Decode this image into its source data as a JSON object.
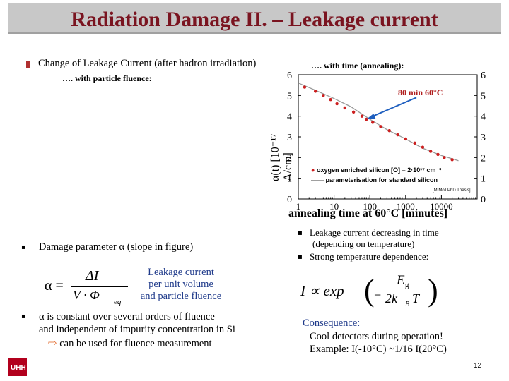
{
  "slide": {
    "title": "Radiation Damage II. – Leakage current",
    "page_number": "12"
  },
  "left_top": {
    "bullet_text": "Change of Leakage Current (after hadron irradiation)",
    "sub_text": "…. with particle fluence:"
  },
  "right_top": {
    "heading": "…. with time (annealing):"
  },
  "chart": {
    "annotation": "80 min 60°C",
    "ylabel": "α(t) [10⁻¹⁷ A/cm]",
    "xlabel": "annealing time at 60°C [minutes]",
    "legend_oxygen": "oxygen enriched silicon [O] = 2·10¹⁷ cm⁻³",
    "legend_param": "parameterisation for standard silicon",
    "credit": "[M.Moll PhD Thesis]",
    "y_ticks": [
      "0",
      "1",
      "2",
      "3",
      "4",
      "5",
      "6"
    ],
    "x_ticks": [
      "1",
      "10",
      "100",
      "1000",
      "10000"
    ]
  },
  "chart_data": {
    "type": "scatter",
    "title": "",
    "xlabel": "annealing time at 60°C [minutes]",
    "ylabel": "α(t) [10⁻¹⁷ A/cm]",
    "x_scale": "log",
    "xlim": [
      1,
      100000
    ],
    "ylim": [
      0,
      6
    ],
    "series": [
      {
        "name": "oxygen enriched silicon [O] = 2·10¹⁷ cm⁻³",
        "x": [
          1.5,
          3,
          5,
          8,
          12,
          20,
          35,
          60,
          80,
          120,
          200,
          350,
          600,
          1000,
          1800,
          3000,
          5000,
          8000,
          12000,
          20000
        ],
        "y": [
          5.4,
          5.2,
          5.0,
          4.8,
          4.6,
          4.4,
          4.2,
          4.0,
          3.85,
          3.7,
          3.5,
          3.3,
          3.1,
          2.9,
          2.7,
          2.5,
          2.3,
          2.15,
          2.0,
          1.9
        ]
      },
      {
        "name": "parameterisation for standard silicon",
        "x": [
          1,
          3,
          10,
          30,
          100,
          300,
          1000,
          3000,
          10000,
          30000
        ],
        "y": [
          5.6,
          5.25,
          4.85,
          4.45,
          3.85,
          3.35,
          2.9,
          2.45,
          2.1,
          1.85
        ]
      }
    ]
  },
  "left_bottom": {
    "bullet1": "Damage parameter α (slope in figure)",
    "eq_lhs": "α =",
    "eq_num": "ΔI",
    "eq_den_v": "V · Φ",
    "eq_den_sub": "eq",
    "eq_note_1": "Leakage current",
    "eq_note_2": "per unit volume",
    "eq_note_3": "and particle fluence",
    "bullet2_line1": "α is constant over several orders of fluence",
    "bullet2_line2": "and independent of impurity concentration in Si",
    "arrow_text": "can be used for fluence measurement"
  },
  "right_bottom": {
    "bullet1_line1": "Leakage current decreasing in time",
    "bullet1_line2": "(depending on temperature)",
    "bullet2": "Strong temperature dependence:",
    "eq_lhs": "I ∝ exp",
    "eq_num": "E",
    "eq_num_sub": "g",
    "eq_den": "2k",
    "eq_den_sub": "B",
    "eq_den_T": "T",
    "consequence_label": "Consequence:",
    "consequence_line1": "Cool detectors during operation!",
    "consequence_line2": "Example: I(-10°C) ~1/16 I(20°C)"
  },
  "colors": {
    "title": "#7a1420",
    "title_bar": "#c8c8c8",
    "data_points": "#cc1f1f",
    "arrow": "#1f5fbf",
    "consequence": "#1f3a8a",
    "logo": "#b2001d"
  }
}
